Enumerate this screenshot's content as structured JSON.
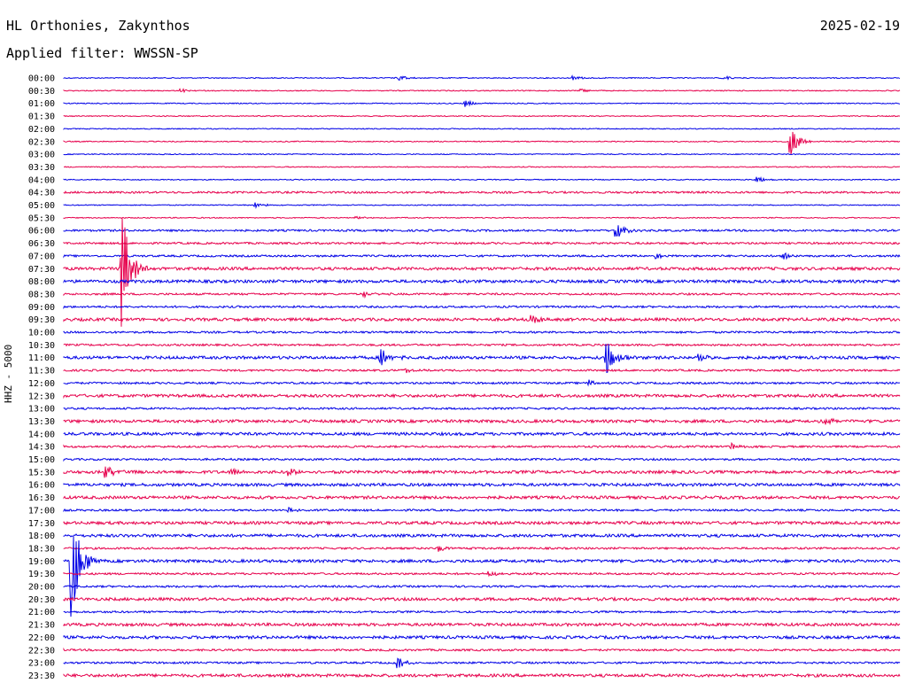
{
  "header": {
    "station": "HL Orthonies, Zakynthos",
    "date": "2025-02-19",
    "filter": "Applied filter: WWSSN-SP"
  },
  "colors": {
    "even_trace": "#0000e6",
    "odd_trace": "#e6004c"
  },
  "chart_data": {
    "type": "line",
    "title": "HL Orthonies, Zakynthos",
    "ylabel": "HHZ - 5000",
    "grid": false,
    "row_labels": [
      "00:00",
      "00:30",
      "01:00",
      "01:30",
      "02:00",
      "02:30",
      "03:00",
      "03:30",
      "04:00",
      "04:30",
      "05:00",
      "05:30",
      "06:00",
      "06:30",
      "07:00",
      "07:30",
      "08:00",
      "08:30",
      "09:00",
      "09:30",
      "10:00",
      "10:30",
      "11:00",
      "11:30",
      "12:00",
      "12:30",
      "13:00",
      "13:30",
      "14:00",
      "14:30",
      "15:00",
      "15:30",
      "16:00",
      "16:30",
      "17:00",
      "17:30",
      "18:00",
      "18:30",
      "19:00",
      "19:30",
      "20:00",
      "20:30",
      "21:00",
      "21:30",
      "22:00",
      "22:30",
      "23:00",
      "23:30"
    ],
    "noise_level": [
      1,
      1,
      1,
      1,
      1,
      1,
      1,
      1,
      1,
      2,
      1,
      1,
      2,
      2,
      2,
      3,
      3,
      2,
      2,
      3,
      2,
      2,
      3,
      2,
      2,
      3,
      2,
      3,
      3,
      2,
      2,
      3,
      3,
      3,
      2,
      3,
      3,
      2,
      3,
      2,
      2,
      3,
      2,
      3,
      3,
      2,
      2,
      3
    ],
    "events": [
      {
        "row": 0,
        "x": 0.4,
        "amp": 3
      },
      {
        "row": 0,
        "x": 0.61,
        "amp": 2
      },
      {
        "row": 0,
        "x": 0.79,
        "amp": 2
      },
      {
        "row": 1,
        "x": 0.14,
        "amp": 2
      },
      {
        "row": 1,
        "x": 0.62,
        "amp": 2
      },
      {
        "row": 2,
        "x": 0.48,
        "amp": 4
      },
      {
        "row": 5,
        "x": 0.87,
        "amp": 14
      },
      {
        "row": 8,
        "x": 0.83,
        "amp": 3
      },
      {
        "row": 10,
        "x": 0.23,
        "amp": 3
      },
      {
        "row": 11,
        "x": 0.35,
        "amp": 2
      },
      {
        "row": 12,
        "x": 0.66,
        "amp": 10
      },
      {
        "row": 14,
        "x": 0.71,
        "amp": 3
      },
      {
        "row": 14,
        "x": 0.86,
        "amp": 4
      },
      {
        "row": 15,
        "x": 0.07,
        "amp": 70
      },
      {
        "row": 17,
        "x": 0.36,
        "amp": 3
      },
      {
        "row": 19,
        "x": 0.56,
        "amp": 4
      },
      {
        "row": 22,
        "x": 0.38,
        "amp": 10
      },
      {
        "row": 22,
        "x": 0.65,
        "amp": 18
      },
      {
        "row": 22,
        "x": 0.76,
        "amp": 4
      },
      {
        "row": 23,
        "x": 0.41,
        "amp": 2
      },
      {
        "row": 24,
        "x": 0.63,
        "amp": 3
      },
      {
        "row": 27,
        "x": 0.91,
        "amp": 5
      },
      {
        "row": 29,
        "x": 0.8,
        "amp": 3
      },
      {
        "row": 31,
        "x": 0.05,
        "amp": 8
      },
      {
        "row": 31,
        "x": 0.2,
        "amp": 3
      },
      {
        "row": 31,
        "x": 0.27,
        "amp": 3
      },
      {
        "row": 34,
        "x": 0.27,
        "amp": 3
      },
      {
        "row": 38,
        "x": 0.01,
        "amp": 65
      },
      {
        "row": 37,
        "x": 0.45,
        "amp": 3
      },
      {
        "row": 39,
        "x": 0.51,
        "amp": 3
      },
      {
        "row": 46,
        "x": 0.4,
        "amp": 6
      }
    ]
  }
}
